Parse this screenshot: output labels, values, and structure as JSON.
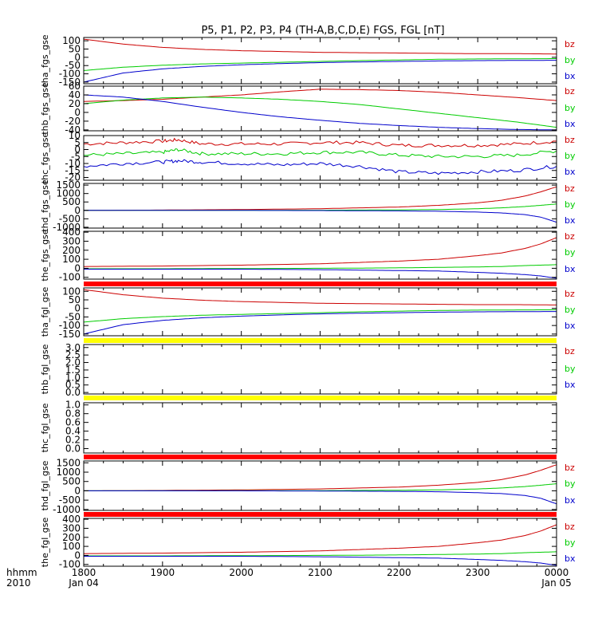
{
  "title": "P5, P1, P2, P3, P4 (TH-A,B,C,D,E) FGS, FGL [nT]",
  "colors": {
    "bz": "#cc0000",
    "by": "#00cc00",
    "bx": "#0000cc",
    "red_bar": "#ff0000",
    "yellow_bar": "#ffff00",
    "axis": "#000000"
  },
  "xaxis": {
    "row_label_1": "hhmm",
    "row_label_2": "2010",
    "ticks": [
      {
        "value": 0,
        "label": "1800",
        "sub": "Jan 04"
      },
      {
        "value": 1,
        "label": "1900",
        "sub": ""
      },
      {
        "value": 2,
        "label": "2000",
        "sub": ""
      },
      {
        "value": 3,
        "label": "2100",
        "sub": ""
      },
      {
        "value": 4,
        "label": "2200",
        "sub": ""
      },
      {
        "value": 5,
        "label": "2300",
        "sub": ""
      },
      {
        "value": 6,
        "label": "0000",
        "sub": "Jan 05"
      }
    ],
    "range": [
      0,
      6
    ]
  },
  "separators": [
    {
      "after_panel": 4,
      "color": "red"
    },
    {
      "after_panel": 5,
      "color": "yellow"
    },
    {
      "after_panel": 6,
      "color": "yellow"
    },
    {
      "after_panel": 7,
      "color": "red"
    },
    {
      "after_panel": 8,
      "color": "red"
    }
  ],
  "chart_data": [
    {
      "type": "line",
      "ylabel": "tha_fgs_gse",
      "ylim": [
        -160,
        120
      ],
      "yticks": [
        100,
        50,
        0,
        -50,
        -100,
        -150
      ],
      "series": [
        {
          "name": "bz",
          "x": [
            0,
            0.5,
            1,
            1.5,
            2,
            2.5,
            3,
            3.5,
            4,
            4.5,
            5,
            5.5,
            6
          ],
          "values": [
            110,
            80,
            60,
            48,
            40,
            35,
            30,
            28,
            26,
            24,
            22,
            22,
            20
          ]
        },
        {
          "name": "by",
          "x": [
            0,
            0.5,
            1,
            1.5,
            2,
            2.5,
            3,
            3.5,
            4,
            4.5,
            5,
            5.5,
            6
          ],
          "values": [
            -80,
            -60,
            -48,
            -40,
            -35,
            -30,
            -25,
            -20,
            -16,
            -12,
            -10,
            -9,
            -8
          ]
        },
        {
          "name": "bx",
          "x": [
            0,
            0.5,
            1,
            1.5,
            2,
            2.5,
            3,
            3.5,
            4,
            4.5,
            5,
            5.5,
            6
          ],
          "values": [
            -150,
            -95,
            -70,
            -55,
            -45,
            -38,
            -32,
            -28,
            -25,
            -22,
            -20,
            -19,
            -18
          ]
        }
      ]
    },
    {
      "type": "line",
      "ylabel": "thb_fgs_gse",
      "ylim": [
        -42,
        60
      ],
      "yticks": [
        60,
        40,
        20,
        0,
        -20,
        -40
      ],
      "series": [
        {
          "name": "bz",
          "x": [
            0,
            0.5,
            1,
            1.5,
            2,
            2.5,
            3,
            3.5,
            4,
            4.5,
            5,
            5.5,
            6
          ],
          "values": [
            25,
            27,
            30,
            35,
            40,
            47,
            53,
            52,
            50,
            46,
            40,
            34,
            27
          ]
        },
        {
          "name": "by",
          "x": [
            0,
            0.5,
            1,
            1.5,
            2,
            2.5,
            3,
            3.5,
            4,
            4.5,
            5,
            5.5,
            6
          ],
          "values": [
            20,
            28,
            33,
            35,
            33,
            30,
            25,
            18,
            8,
            -2,
            -12,
            -22,
            -34
          ]
        },
        {
          "name": "bx",
          "x": [
            0,
            0.5,
            1,
            1.5,
            2,
            2.5,
            3,
            3.5,
            4,
            4.5,
            5,
            5.5,
            6
          ],
          "values": [
            40,
            35,
            25,
            12,
            0,
            -10,
            -18,
            -25,
            -30,
            -34,
            -37,
            -39,
            -40
          ]
        }
      ]
    },
    {
      "type": "line",
      "ylabel": "thc_fgs_gse",
      "ylim": [
        -22,
        10
      ],
      "yticks": [
        10,
        5,
        0,
        -5,
        -10,
        -15,
        -20
      ],
      "series": [
        {
          "name": "bz",
          "x": [
            0,
            0.5,
            1,
            1.2,
            1.5,
            2,
            2.5,
            3,
            3.5,
            4,
            4.5,
            5,
            5.5,
            6
          ],
          "values": [
            4,
            5,
            6,
            7,
            4,
            4,
            4,
            5,
            5,
            3,
            3,
            3,
            4,
            6
          ]
        },
        {
          "name": "by",
          "x": [
            0,
            0.5,
            1,
            1.2,
            1.5,
            2,
            2.5,
            3,
            3.5,
            4,
            4.5,
            5,
            5.5,
            6
          ],
          "values": [
            -4,
            -3,
            -2,
            0,
            -3,
            -3,
            -3,
            -2,
            -2,
            -4,
            -5,
            -5,
            -4,
            -1
          ]
        },
        {
          "name": "bx",
          "x": [
            0,
            0.5,
            1,
            1.2,
            1.5,
            2,
            2.5,
            3,
            3.5,
            4,
            4.5,
            5,
            5.5,
            6
          ],
          "values": [
            -12,
            -10,
            -9,
            -8,
            -9,
            -10,
            -11,
            -10,
            -12,
            -16,
            -17,
            -16,
            -15,
            -12
          ]
        }
      ]
    },
    {
      "type": "line",
      "ylabel": "thd_fgs_gse",
      "ylim": [
        -1050,
        1600
      ],
      "yticks": [
        1500,
        1000,
        500,
        0,
        -500,
        -1000
      ],
      "series": [
        {
          "name": "bz",
          "x": [
            0,
            1,
            2,
            3,
            3.5,
            4,
            4.5,
            5,
            5.3,
            5.6,
            5.8,
            6
          ],
          "values": [
            0,
            20,
            50,
            100,
            150,
            200,
            300,
            450,
            600,
            850,
            1100,
            1400
          ]
        },
        {
          "name": "by",
          "x": [
            0,
            1,
            2,
            3,
            3.5,
            4,
            4.5,
            5,
            5.3,
            5.6,
            5.8,
            6
          ],
          "values": [
            0,
            0,
            5,
            10,
            20,
            30,
            50,
            100,
            150,
            230,
            300,
            380
          ]
        },
        {
          "name": "bx",
          "x": [
            0,
            1,
            2,
            3,
            3.5,
            4,
            4.5,
            5,
            5.3,
            5.6,
            5.8,
            6
          ],
          "values": [
            0,
            0,
            0,
            -10,
            -20,
            -30,
            -50,
            -100,
            -150,
            -250,
            -400,
            -700
          ]
        }
      ]
    },
    {
      "type": "line",
      "ylabel": "the_fgs_gse",
      "ylim": [
        -120,
        410
      ],
      "yticks": [
        400,
        300,
        200,
        100,
        0,
        -100
      ],
      "series": [
        {
          "name": "bz",
          "x": [
            0,
            1,
            2,
            3,
            3.5,
            4,
            4.5,
            5,
            5.3,
            5.6,
            5.8,
            6
          ],
          "values": [
            20,
            25,
            35,
            50,
            65,
            80,
            100,
            140,
            170,
            220,
            270,
            340
          ]
        },
        {
          "name": "by",
          "x": [
            0,
            1,
            2,
            3,
            3.5,
            4,
            4.5,
            5,
            5.3,
            5.6,
            5.8,
            6
          ],
          "values": [
            -5,
            -5,
            -3,
            0,
            2,
            5,
            10,
            15,
            20,
            30,
            35,
            40
          ]
        },
        {
          "name": "bx",
          "x": [
            0,
            1,
            2,
            3,
            3.5,
            4,
            4.5,
            5,
            5.3,
            5.6,
            5.8,
            6
          ],
          "values": [
            -10,
            -10,
            -10,
            -15,
            -20,
            -25,
            -30,
            -45,
            -55,
            -70,
            -85,
            -110
          ]
        }
      ]
    },
    {
      "type": "line",
      "ylabel": "tha_fgl_gse",
      "ylim": [
        -160,
        120
      ],
      "yticks": [
        100,
        50,
        0,
        -50,
        -100,
        -150
      ],
      "series": [
        {
          "name": "bz",
          "x": [
            0,
            0.5,
            1,
            1.5,
            2,
            2.5,
            3,
            3.5,
            4,
            4.5,
            5,
            5.5,
            6
          ],
          "values": [
            110,
            80,
            60,
            48,
            40,
            35,
            30,
            28,
            26,
            24,
            22,
            22,
            20
          ]
        },
        {
          "name": "by",
          "x": [
            0,
            0.5,
            1,
            1.5,
            2,
            2.5,
            3,
            3.5,
            4,
            4.5,
            5,
            5.5,
            6
          ],
          "values": [
            -80,
            -60,
            -48,
            -40,
            -35,
            -30,
            -25,
            -20,
            -16,
            -12,
            -10,
            -9,
            -8
          ]
        },
        {
          "name": "bx",
          "x": [
            0,
            0.5,
            1,
            1.5,
            2,
            2.5,
            3,
            3.5,
            4,
            4.5,
            5,
            5.5,
            6
          ],
          "values": [
            -150,
            -95,
            -70,
            -55,
            -45,
            -38,
            -32,
            -28,
            -25,
            -22,
            -20,
            -19,
            -18
          ]
        }
      ]
    },
    {
      "type": "line",
      "ylabel": "thb_fgl_gse",
      "ylim": [
        -0.1,
        3.2
      ],
      "yticks": [
        3.0,
        2.5,
        2.0,
        1.5,
        1.0,
        0.5,
        0.0
      ],
      "series": []
    },
    {
      "type": "line",
      "ylabel": "thc_fgl_gse",
      "ylim": [
        -0.1,
        1.05
      ],
      "yticks": [
        1.0,
        0.8,
        0.6,
        0.4,
        0.2,
        0.0
      ],
      "series": []
    },
    {
      "type": "line",
      "ylabel": "thd_fgl_gse",
      "ylim": [
        -1050,
        1600
      ],
      "yticks": [
        1500,
        1000,
        500,
        0,
        -500,
        -1000
      ],
      "series": [
        {
          "name": "bz",
          "x": [
            0,
            1,
            2,
            3,
            3.5,
            4,
            4.5,
            5,
            5.3,
            5.6,
            5.8,
            6
          ],
          "values": [
            0,
            20,
            50,
            100,
            150,
            200,
            300,
            450,
            600,
            850,
            1100,
            1400
          ]
        },
        {
          "name": "by",
          "x": [
            0,
            1,
            2,
            3,
            3.5,
            4,
            4.5,
            5,
            5.3,
            5.6,
            5.8,
            6
          ],
          "values": [
            0,
            0,
            5,
            10,
            20,
            30,
            50,
            100,
            150,
            230,
            300,
            380
          ]
        },
        {
          "name": "bx",
          "x": [
            0,
            1,
            2,
            3,
            3.5,
            4,
            4.5,
            5,
            5.3,
            5.6,
            5.8,
            6
          ],
          "values": [
            0,
            0,
            0,
            -10,
            -20,
            -30,
            -50,
            -100,
            -150,
            -250,
            -400,
            -700
          ]
        }
      ]
    },
    {
      "type": "line",
      "ylabel": "the_fgl_gse",
      "ylim": [
        -120,
        410
      ],
      "yticks": [
        400,
        300,
        200,
        100,
        0,
        -100
      ],
      "series": [
        {
          "name": "bz",
          "x": [
            0,
            1,
            2,
            3,
            3.5,
            4,
            4.5,
            5,
            5.3,
            5.6,
            5.8,
            6
          ],
          "values": [
            20,
            25,
            35,
            50,
            65,
            80,
            100,
            140,
            170,
            220,
            270,
            340
          ]
        },
        {
          "name": "by",
          "x": [
            0,
            1,
            2,
            3,
            3.5,
            4,
            4.5,
            5,
            5.3,
            5.6,
            5.8,
            6
          ],
          "values": [
            -5,
            -5,
            -3,
            0,
            2,
            5,
            10,
            15,
            20,
            30,
            35,
            40
          ]
        },
        {
          "name": "bx",
          "x": [
            0,
            1,
            2,
            3,
            3.5,
            4,
            4.5,
            5,
            5.3,
            5.6,
            5.8,
            6
          ],
          "values": [
            -10,
            -10,
            -10,
            -15,
            -20,
            -25,
            -30,
            -45,
            -55,
            -70,
            -85,
            -110
          ]
        }
      ]
    }
  ],
  "legend_labels": [
    "bz",
    "by",
    "bx"
  ]
}
